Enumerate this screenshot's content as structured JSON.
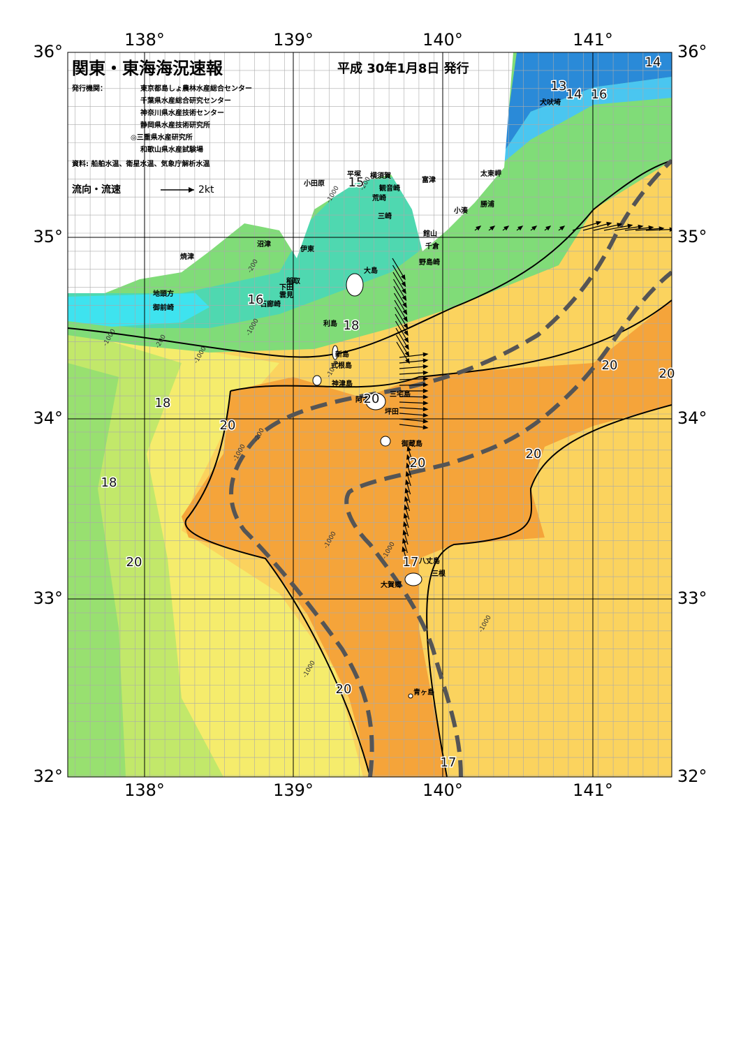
{
  "header": {
    "title": "関東・東海海況速報",
    "date": "平成 30年1月8日 発行",
    "issuer_label": "発行機関：",
    "issuers": [
      "東京都島しょ農林水産総合センター",
      "千葉県水産総合研究センター",
      "神奈川県水産技術センター",
      "静岡県水産技術研究所",
      "◎三重県水産研究所",
      "和歌山県水産試験場"
    ],
    "sources": "資料: 船舶水温、衛星水温、気象庁解析水温",
    "legend_label": "流向・流速",
    "legend_scale": "2kt"
  },
  "axes": {
    "lon_labels": [
      "138°",
      "139°",
      "140°",
      "141°"
    ],
    "lat_labels": [
      "36°",
      "35°",
      "34°",
      "33°",
      "32°"
    ]
  },
  "places": [
    "小田原",
    "平塚",
    "横須賀",
    "観音崎",
    "富津",
    "荒崎",
    "三崎",
    "太東岬",
    "勝浦",
    "小湊",
    "館山",
    "千倉",
    "野島崎",
    "犬吠埼",
    "沼津",
    "伊東",
    "焼津",
    "大島",
    "稲取",
    "下田",
    "雲見",
    "地頭方",
    "石廊崎",
    "御前崎",
    "利島",
    "新島",
    "式根島",
    "神津島",
    "三宅島",
    "阿古",
    "坪田",
    "御蔵島",
    "八丈島",
    "三根",
    "大賀郷",
    "青ヶ島"
  ],
  "temperature_labels": [
    14,
    13,
    14,
    16,
    15,
    16,
    18,
    18,
    20,
    20,
    20,
    20,
    20,
    20,
    17,
    18,
    20,
    20,
    17
  ],
  "depth_labels": [
    -1000,
    -200,
    -200,
    -1000,
    -200,
    -1000,
    -1000,
    -1000,
    -200,
    -1000,
    -1000,
    -1000,
    -1000,
    -1000
  ]
}
